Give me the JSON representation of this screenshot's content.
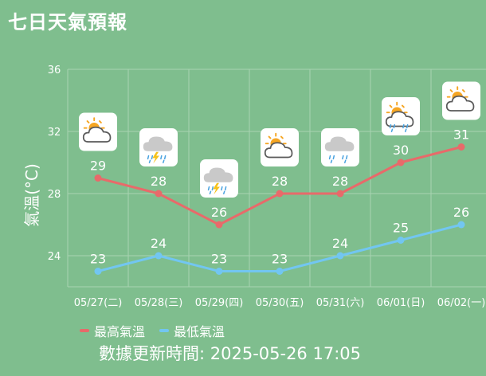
{
  "header": {
    "title": "七日天氣預報"
  },
  "footer": {
    "update_label": "數據更新時間: ",
    "update_time": "2025-05-26 17:05"
  },
  "colors": {
    "background": "#7fbe8e",
    "high": "#e86a6a",
    "low": "#72c6f1",
    "grid": "#a9d4b2"
  },
  "chart_data": {
    "type": "line",
    "title": "",
    "xlabel": "",
    "ylabel": "氣溫(°C)",
    "ylim": [
      22,
      36
    ],
    "yticks": [
      24,
      28,
      32,
      36
    ],
    "grid": true,
    "legend_position": "bottom-left",
    "categories": [
      "05/27(二)",
      "05/28(三)",
      "05/29(四)",
      "05/30(五)",
      "05/31(六)",
      "06/01(日)",
      "06/02(一)"
    ],
    "icons": [
      "partly-cloudy-icon",
      "thunder-rain-icon",
      "thunder-rain-icon",
      "partly-cloudy-icon",
      "cloudy-rain-icon",
      "partly-cloudy-rain-icon",
      "partly-cloudy-icon"
    ],
    "series": [
      {
        "name": "最高氣溫",
        "key": "high",
        "values": [
          29,
          28,
          26,
          28,
          28,
          30,
          31
        ]
      },
      {
        "name": "最低氣溫",
        "key": "low",
        "values": [
          23,
          24,
          23,
          23,
          24,
          25,
          26
        ]
      }
    ]
  }
}
